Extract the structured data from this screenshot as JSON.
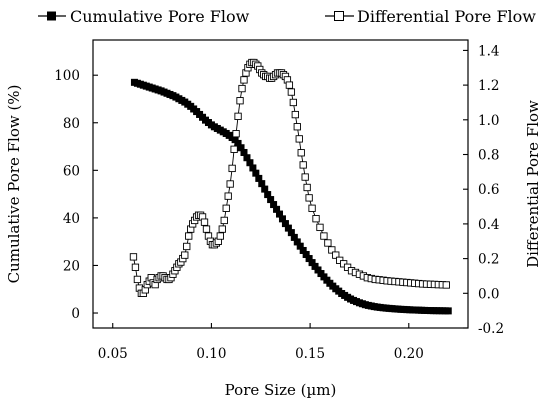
{
  "chart_data": {
    "type": "scatter",
    "title": "",
    "xlabel": "Pore Size (µm)",
    "ylabel_left": "Cumulative Pore Flow (%)",
    "ylabel_right": "Differential Pore Flow",
    "xlim": [
      0.04,
      0.23
    ],
    "ylim_left": [
      -6.3,
      114.8
    ],
    "ylim_right": [
      -0.2,
      1.46
    ],
    "x_ticks": [
      "0.05",
      "0.10",
      "0.15",
      "0.20"
    ],
    "x_tick_values": [
      0.05,
      0.1,
      0.15,
      0.2
    ],
    "y_left_ticks": [
      "0",
      "20",
      "40",
      "60",
      "80",
      "100"
    ],
    "y_left_tick_values": [
      0,
      20,
      40,
      60,
      80,
      100
    ],
    "y_right_ticks": [
      "-0.2",
      "0.0",
      "0.2",
      "0.4",
      "0.6",
      "0.8",
      "1.0",
      "1.2",
      "1.4"
    ],
    "y_right_tick_values": [
      -0.2,
      0.0,
      0.2,
      0.4,
      0.6,
      0.8,
      1.0,
      1.2,
      1.4
    ],
    "grid": false,
    "legend_position": "top",
    "series": [
      {
        "name": "Cumulative Pore Flow",
        "axis": "left",
        "marker": "filled-square",
        "color": "#000000",
        "x": [
          0.061,
          0.0625,
          0.064,
          0.0655,
          0.067,
          0.0685,
          0.07,
          0.0715,
          0.073,
          0.0745,
          0.076,
          0.0775,
          0.079,
          0.0805,
          0.082,
          0.0835,
          0.085,
          0.0865,
          0.088,
          0.0895,
          0.091,
          0.0925,
          0.094,
          0.0955,
          0.097,
          0.0985,
          0.1,
          0.1015,
          0.103,
          0.1045,
          0.106,
          0.1075,
          0.109,
          0.1105,
          0.112,
          0.1135,
          0.115,
          0.1165,
          0.118,
          0.1195,
          0.121,
          0.1225,
          0.124,
          0.1255,
          0.127,
          0.1285,
          0.13,
          0.1315,
          0.133,
          0.1345,
          0.136,
          0.1375,
          0.139,
          0.1405,
          0.142,
          0.1435,
          0.145,
          0.1465,
          0.148,
          0.1495,
          0.151,
          0.1525,
          0.154,
          0.1555,
          0.157,
          0.1585,
          0.16,
          0.1615,
          0.163,
          0.1645,
          0.166,
          0.1675,
          0.169,
          0.1705,
          0.172,
          0.1735,
          0.175,
          0.1765,
          0.178,
          0.1795,
          0.181,
          0.1825,
          0.184,
          0.1855,
          0.187,
          0.1885,
          0.19,
          0.1915,
          0.193,
          0.1945,
          0.196,
          0.1975,
          0.199,
          0.2005,
          0.202,
          0.2035,
          0.205,
          0.2065,
          0.208,
          0.2095,
          0.211,
          0.2125,
          0.214,
          0.2155,
          0.217,
          0.2185,
          0.22
        ],
        "y": [
          97,
          96.6,
          96.2,
          95.8,
          95.4,
          95,
          94.6,
          94.2,
          93.8,
          93.4,
          92.9,
          92.4,
          91.9,
          91.4,
          90.8,
          90.1,
          89.4,
          88.7,
          87.8,
          86.9,
          85.8,
          84.7,
          83.5,
          82.3,
          81.1,
          80.1,
          79.1,
          78.3,
          77.6,
          76.9,
          76.2,
          75.5,
          74.7,
          73.8,
          72.9,
          71.3,
          69.5,
          67.5,
          65.3,
          63.2,
          61.0,
          58.8,
          56.6,
          54.4,
          52.1,
          49.8,
          47.7,
          45.6,
          43.6,
          41.6,
          39.6,
          37.6,
          35.7,
          33.8,
          31.8,
          29.9,
          28.1,
          26.3,
          24.6,
          22.9,
          21.2,
          19.6,
          18.1,
          16.6,
          15.2,
          13.8,
          12.5,
          11.3,
          10.2,
          9.2,
          8.2,
          7.4,
          6.6,
          5.9,
          5.3,
          4.8,
          4.3,
          3.9,
          3.5,
          3.2,
          2.95,
          2.7,
          2.5,
          2.35,
          2.2,
          2.05,
          1.95,
          1.85,
          1.75,
          1.65,
          1.55,
          1.5,
          1.42,
          1.36,
          1.3,
          1.25,
          1.2,
          1.15,
          1.1,
          1.06,
          1.02,
          1.0,
          0.98,
          0.96,
          0.94,
          0.92,
          0.9
        ]
      },
      {
        "name": "Differential Pore Flow",
        "axis": "right",
        "marker": "open-square",
        "color": "#000000",
        "x": [
          0.0605,
          0.0615,
          0.0625,
          0.0635,
          0.0645,
          0.0655,
          0.0665,
          0.0675,
          0.0685,
          0.0695,
          0.0705,
          0.0715,
          0.0725,
          0.0735,
          0.0745,
          0.0755,
          0.0765,
          0.0775,
          0.0785,
          0.0795,
          0.0805,
          0.0815,
          0.0825,
          0.0835,
          0.0845,
          0.0855,
          0.0865,
          0.0875,
          0.0885,
          0.0895,
          0.0905,
          0.0915,
          0.0925,
          0.0935,
          0.0945,
          0.0955,
          0.0965,
          0.0975,
          0.0985,
          0.0995,
          0.1005,
          0.1015,
          0.1025,
          0.1035,
          0.1045,
          0.1055,
          0.1065,
          0.1075,
          0.1085,
          0.1095,
          0.1105,
          0.1115,
          0.1125,
          0.1135,
          0.1145,
          0.1155,
          0.1165,
          0.1175,
          0.1185,
          0.1195,
          0.1205,
          0.1215,
          0.1225,
          0.1235,
          0.1245,
          0.1255,
          0.1265,
          0.1275,
          0.1285,
          0.1295,
          0.1305,
          0.1315,
          0.1325,
          0.1335,
          0.1345,
          0.1355,
          0.1365,
          0.1375,
          0.1385,
          0.1395,
          0.1405,
          0.1415,
          0.1425,
          0.1435,
          0.1445,
          0.1455,
          0.1465,
          0.1475,
          0.1485,
          0.1495,
          0.151,
          0.153,
          0.155,
          0.157,
          0.159,
          0.161,
          0.163,
          0.165,
          0.167,
          0.169,
          0.171,
          0.173,
          0.175,
          0.177,
          0.179,
          0.181,
          0.183,
          0.185,
          0.187,
          0.189,
          0.191,
          0.193,
          0.195,
          0.197,
          0.199,
          0.201,
          0.203,
          0.205,
          0.207,
          0.209,
          0.211,
          0.213,
          0.215,
          0.217,
          0.219
        ],
        "y": [
          0.21,
          0.15,
          0.08,
          0.03,
          0.0,
          0.0,
          0.02,
          0.05,
          0.07,
          0.09,
          0.06,
          0.05,
          0.08,
          0.09,
          0.1,
          0.1,
          0.09,
          0.08,
          0.08,
          0.09,
          0.11,
          0.13,
          0.15,
          0.17,
          0.18,
          0.2,
          0.22,
          0.27,
          0.33,
          0.37,
          0.4,
          0.42,
          0.44,
          0.45,
          0.45,
          0.44,
          0.41,
          0.37,
          0.33,
          0.3,
          0.28,
          0.28,
          0.29,
          0.3,
          0.33,
          0.37,
          0.42,
          0.49,
          0.56,
          0.63,
          0.72,
          0.83,
          0.92,
          1.02,
          1.11,
          1.18,
          1.23,
          1.27,
          1.3,
          1.32,
          1.33,
          1.33,
          1.32,
          1.31,
          1.29,
          1.27,
          1.26,
          1.25,
          1.25,
          1.24,
          1.24,
          1.25,
          1.26,
          1.27,
          1.27,
          1.27,
          1.26,
          1.25,
          1.23,
          1.2,
          1.16,
          1.1,
          1.03,
          0.96,
          0.89,
          0.81,
          0.74,
          0.67,
          0.61,
          0.55,
          0.49,
          0.43,
          0.38,
          0.33,
          0.29,
          0.25,
          0.22,
          0.19,
          0.17,
          0.15,
          0.13,
          0.12,
          0.11,
          0.1,
          0.09,
          0.085,
          0.08,
          0.078,
          0.075,
          0.072,
          0.07,
          0.068,
          0.066,
          0.064,
          0.062,
          0.06,
          0.058,
          0.056,
          0.054,
          0.053,
          0.052,
          0.051,
          0.05,
          0.049,
          0.048
        ]
      }
    ]
  }
}
